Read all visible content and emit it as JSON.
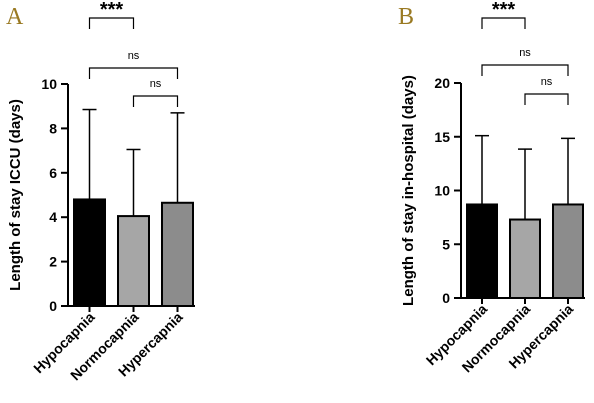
{
  "chart_data": [
    {
      "panel": "A",
      "type": "bar",
      "categories": [
        "Hypocapnia",
        "Normocapnia",
        "Hypercapnia"
      ],
      "values": [
        4.8,
        4.05,
        4.65
      ],
      "error_upper": [
        8.85,
        7.05,
        8.7
      ],
      "colors": [
        "#000000",
        "#a6a6a6",
        "#8c8c8c"
      ],
      "ylabel": "Length of stay ICCU (days)",
      "ylim": [
        0,
        10
      ],
      "yticks": [
        "0",
        "2",
        "4",
        "6",
        "8",
        "10"
      ],
      "comparisons": [
        {
          "from": 0,
          "to": 1,
          "label": "***"
        },
        {
          "from": 0,
          "to": 2,
          "label": "ns"
        },
        {
          "from": 1,
          "to": 2,
          "label": "ns"
        }
      ]
    },
    {
      "panel": "B",
      "type": "bar",
      "categories": [
        "Hypocapnia",
        "Normocapnia",
        "Hypercapnia"
      ],
      "values": [
        8.7,
        7.3,
        8.7
      ],
      "error_upper": [
        15.1,
        13.85,
        14.85
      ],
      "colors": [
        "#000000",
        "#a6a6a6",
        "#8c8c8c"
      ],
      "ylabel": "Length of stay in-hospital (days)",
      "ylim": [
        0,
        20
      ],
      "yticks": [
        "0",
        "5",
        "10",
        "15",
        "20"
      ],
      "comparisons": [
        {
          "from": 0,
          "to": 1,
          "label": "***"
        },
        {
          "from": 0,
          "to": 2,
          "label": "ns"
        },
        {
          "from": 1,
          "to": 2,
          "label": "ns"
        }
      ]
    }
  ]
}
